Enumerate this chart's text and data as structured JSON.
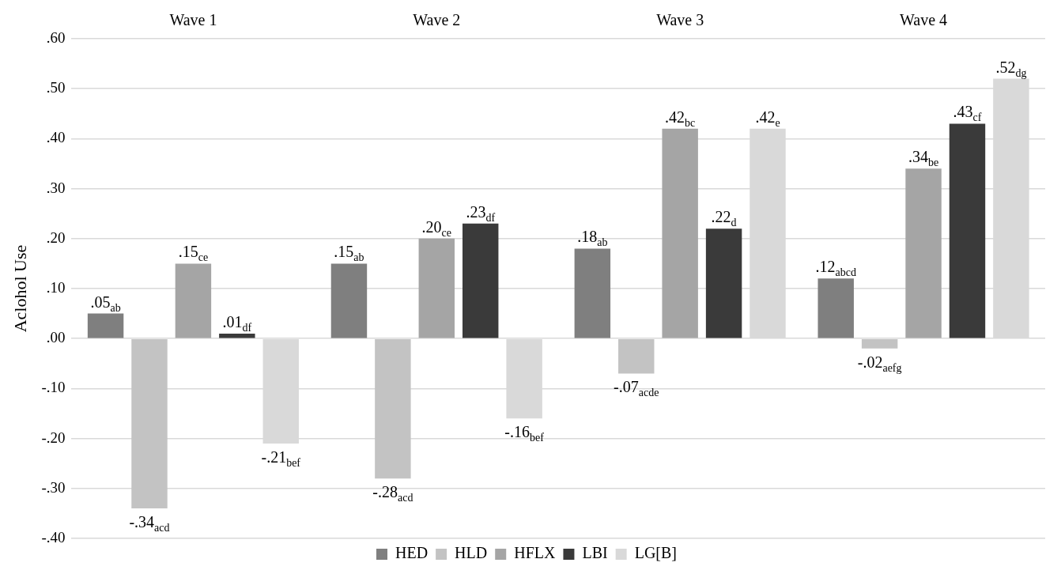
{
  "chart_data": {
    "type": "bar",
    "categories": [
      "Wave 1",
      "Wave 2",
      "Wave 3",
      "Wave 4"
    ],
    "ylabel": "Aclohol Use",
    "ylim": [
      -0.4,
      0.6
    ],
    "yticks": [
      {
        "value": -0.4,
        "label": "-.40"
      },
      {
        "value": -0.3,
        "label": "-.30"
      },
      {
        "value": -0.2,
        "label": "-.20"
      },
      {
        "value": -0.1,
        "label": "-.10"
      },
      {
        "value": 0,
        "label": ".00"
      },
      {
        "value": 0.1,
        "label": ".10"
      },
      {
        "value": 0.2,
        "label": ".20"
      },
      {
        "value": 0.3,
        "label": ".30"
      },
      {
        "value": 0.4,
        "label": ".40"
      },
      {
        "value": 0.5,
        "label": ".50"
      },
      {
        "value": 0.6,
        "label": ".60"
      }
    ],
    "grid": "y",
    "legend": "bottom",
    "series": [
      {
        "name": "HED",
        "color": "#7f7f7f",
        "values": [
          0.05,
          0.15,
          0.18,
          0.12
        ],
        "value_labels": [
          ".05$_{ab}$",
          ".15$_{ab}$",
          ".18$_{ab}$",
          ".12$_{abcd}$"
        ]
      },
      {
        "name": "HLD",
        "color": "#c3c3c3",
        "values": [
          -0.34,
          -0.28,
          -0.07,
          -0.02
        ],
        "value_labels": [
          "-.34$_{acd}$",
          "-.28$_{acd}$",
          "-.07$_{acde}$",
          "-.02$_{aefg}$"
        ]
      },
      {
        "name": "HFLX",
        "color": "#a5a5a5",
        "values": [
          0.15,
          0.2,
          0.42,
          0.34
        ],
        "value_labels": [
          ".15$_{ce}$",
          ".20$_{ce}$",
          ".42$_{bc}$",
          ".34$_{be}$"
        ]
      },
      {
        "name": "LBI",
        "color": "#3a3a3a",
        "values": [
          0.01,
          0.23,
          0.22,
          0.43
        ],
        "value_labels": [
          ".01$_{df}$",
          ".23$_{df}$",
          ".22$_{d}$",
          ".43$_{cf}$"
        ]
      },
      {
        "name": "LG[B]",
        "color": "#d9d9d9",
        "values": [
          -0.21,
          -0.16,
          0.42,
          0.52
        ],
        "value_labels": [
          "-.21$_{bef}$",
          "-.16$_{bef}$",
          ".42$_{e}$",
          ".52$_{dg}$"
        ]
      }
    ]
  }
}
